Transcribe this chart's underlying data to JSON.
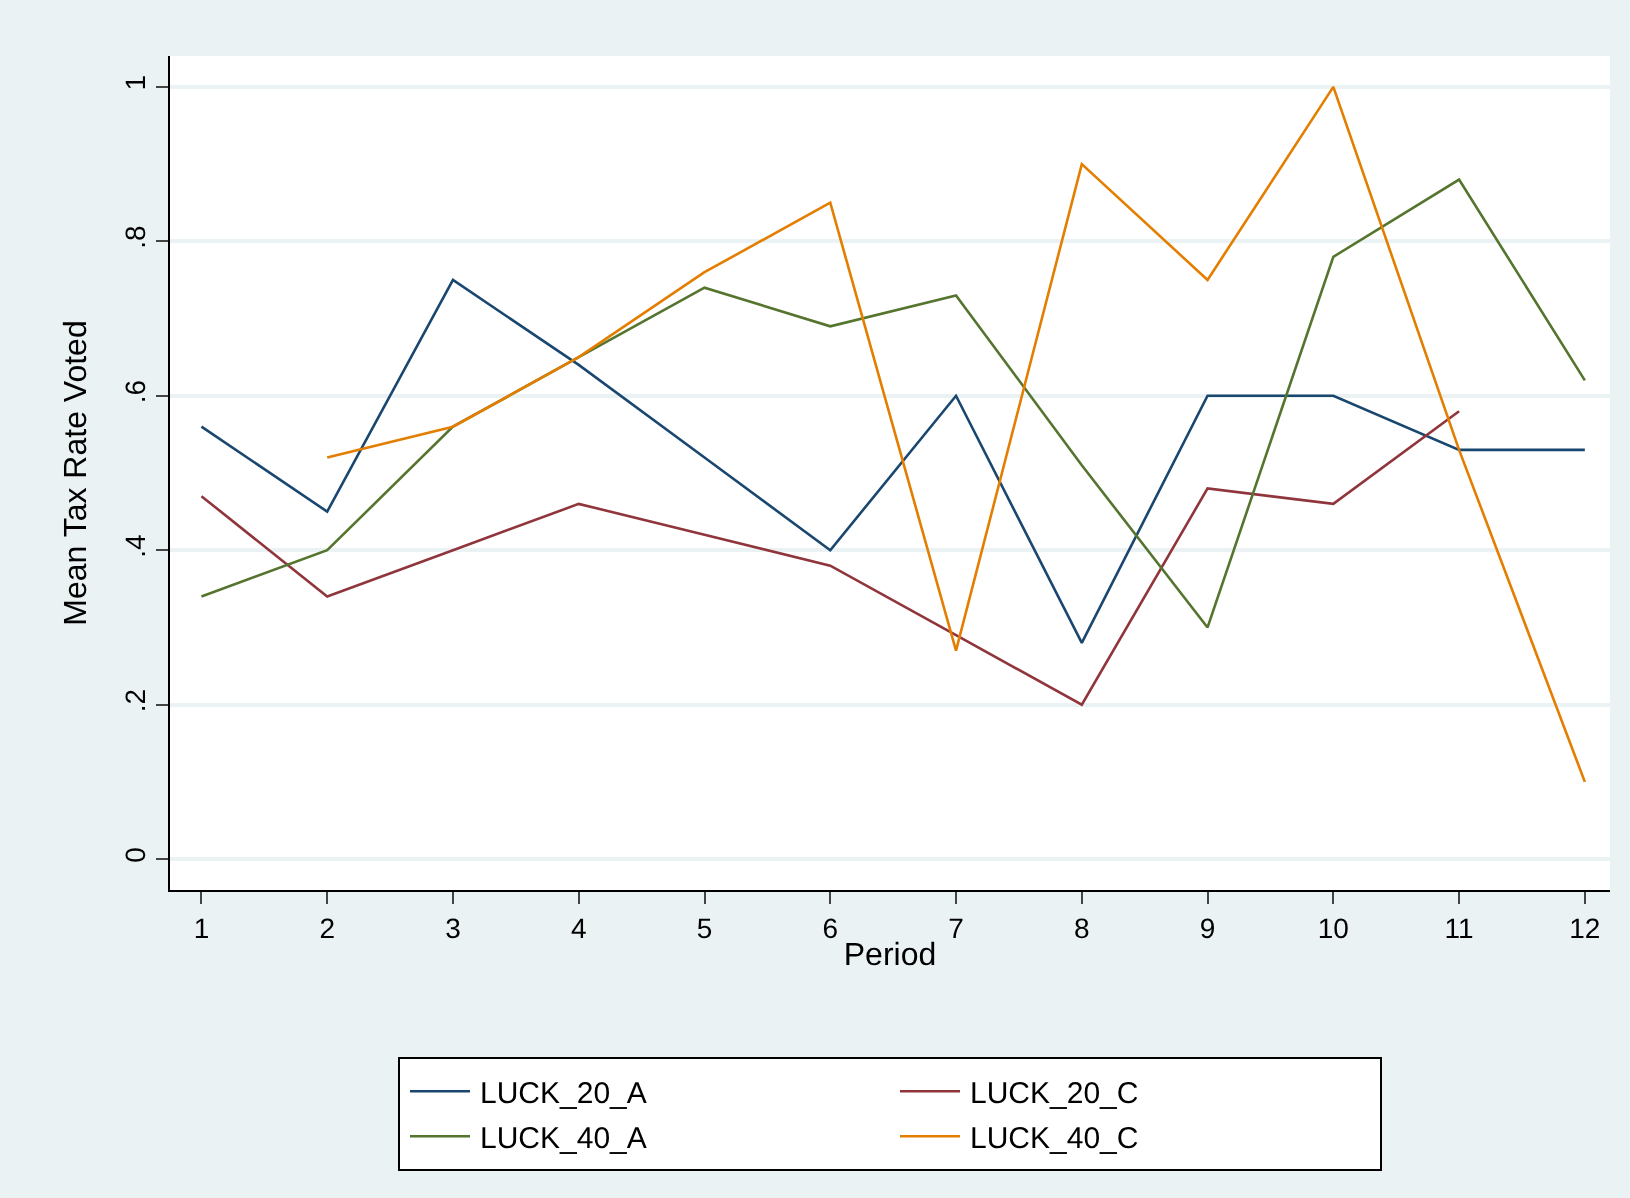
{
  "chart_data": {
    "type": "line",
    "xlabel": "Period",
    "ylabel": "Mean Tax Rate Voted",
    "x": [
      1,
      2,
      3,
      4,
      5,
      6,
      7,
      8,
      9,
      10,
      11,
      12
    ],
    "series": [
      {
        "name": "LUCK_20_A",
        "color": "#1a476f",
        "values": [
          0.56,
          0.45,
          0.75,
          0.64,
          0.52,
          0.4,
          0.6,
          0.28,
          0.6,
          0.6,
          0.53,
          0.53
        ]
      },
      {
        "name": "LUCK_20_C",
        "color": "#90353b",
        "values": [
          0.47,
          0.34,
          0.4,
          0.46,
          0.42,
          0.38,
          0.29,
          0.2,
          0.48,
          0.46,
          0.58,
          null
        ]
      },
      {
        "name": "LUCK_40_A",
        "color": "#55752f",
        "values": [
          0.34,
          0.4,
          0.56,
          0.65,
          0.74,
          0.69,
          0.73,
          0.51,
          0.3,
          0.78,
          0.88,
          0.62
        ]
      },
      {
        "name": "LUCK_40_C",
        "color": "#e37e00",
        "values": [
          null,
          0.52,
          0.56,
          0.65,
          0.76,
          0.85,
          0.27,
          0.9,
          0.75,
          1.0,
          0.53,
          0.1
        ]
      }
    ],
    "xlim": [
      0.75,
      12.2
    ],
    "xticks": [
      1,
      2,
      3,
      4,
      5,
      6,
      7,
      8,
      9,
      10,
      11,
      12
    ],
    "ylim": [
      -0.04,
      1.04
    ],
    "yticks": [
      {
        "value": 0,
        "label": "0"
      },
      {
        "value": 0.2,
        "label": ".2"
      },
      {
        "value": 0.4,
        "label": ".4"
      },
      {
        "value": 0.6,
        "label": ".6"
      },
      {
        "value": 0.8,
        "label": ".8"
      },
      {
        "value": 1,
        "label": "1"
      }
    ],
    "grid": "y",
    "legend": "bottom",
    "marker": "none",
    "line_style": "solid"
  }
}
